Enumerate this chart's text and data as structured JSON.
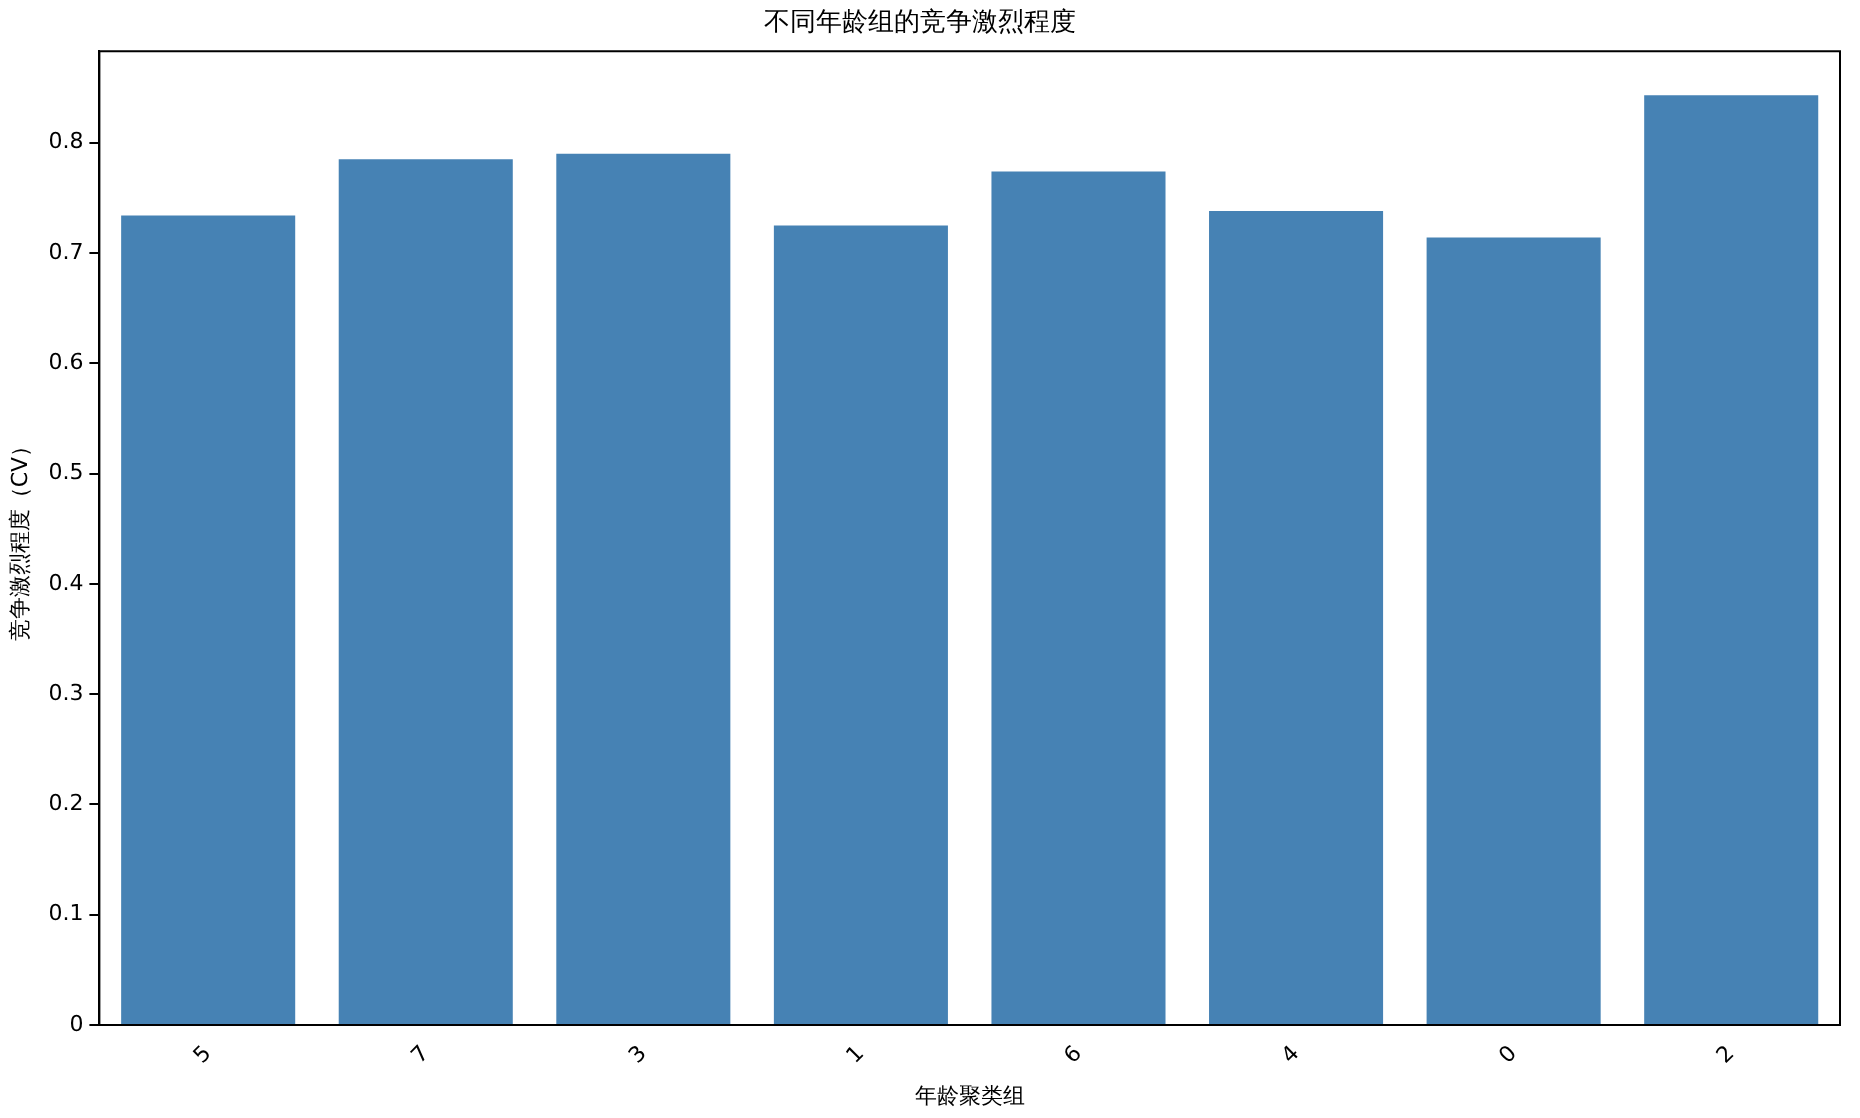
{
  "chart_data": {
    "type": "bar",
    "title": "不同年龄组的竞争激烈程度",
    "xlabel": "年龄聚类组",
    "ylabel": "竞争激烈程度（CV）",
    "categories": [
      "5",
      "7",
      "3",
      "1",
      "6",
      "4",
      "0",
      "2"
    ],
    "values": [
      0.734,
      0.785,
      0.79,
      0.725,
      0.774,
      0.738,
      0.714,
      0.843
    ],
    "color": "#4682b4",
    "ylim": [
      0,
      0.883
    ],
    "yticks": [
      0,
      0.1,
      0.2,
      0.3,
      0.4,
      0.5,
      0.6,
      0.7,
      0.8
    ],
    "grid": false,
    "legend": false
  }
}
